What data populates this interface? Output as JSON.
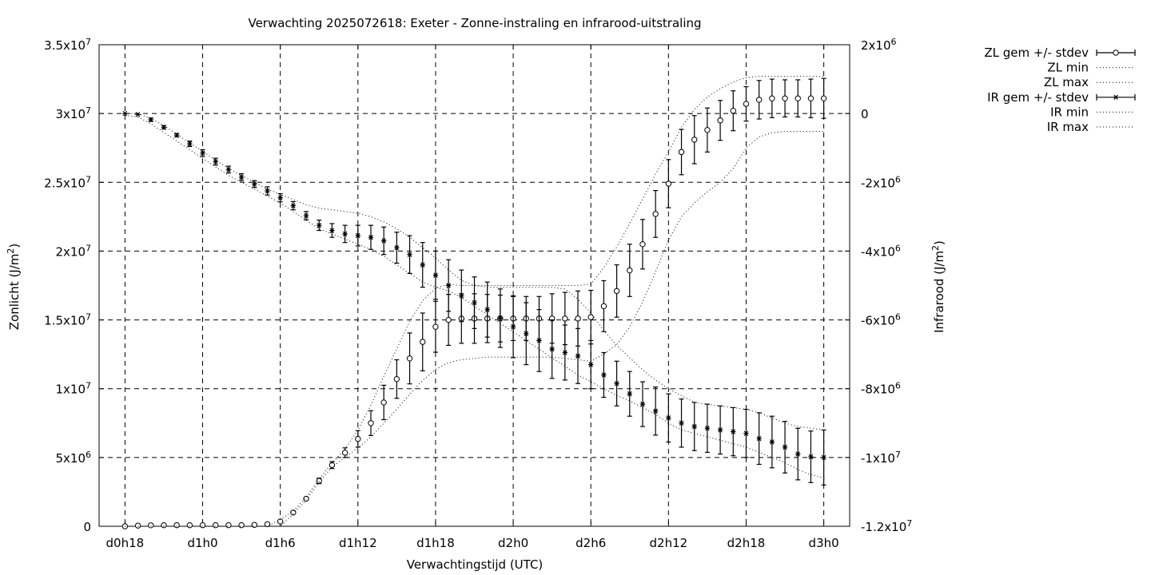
{
  "chart_data": {
    "type": "line",
    "title": "Verwachting 2025072618: Exeter - Zonne-instraling en infrarood-uitstraling",
    "xlabel": "Verwachtingstijd (UTC)",
    "ylabel": "Zonlicht (J/m²)",
    "y2label": "Infrarood (J/m²)",
    "x_ticks": [
      {
        "x": 18,
        "label": "d0h18"
      },
      {
        "x": 24,
        "label": "d1h0"
      },
      {
        "x": 30,
        "label": "d1h6"
      },
      {
        "x": 36,
        "label": "d1h12"
      },
      {
        "x": 42,
        "label": "d1h18"
      },
      {
        "x": 48,
        "label": "d2h0"
      },
      {
        "x": 54,
        "label": "d2h6"
      },
      {
        "x": 60,
        "label": "d2h12"
      },
      {
        "x": 66,
        "label": "d2h18"
      },
      {
        "x": 72,
        "label": "d3h0"
      }
    ],
    "xlim": [
      16,
      74
    ],
    "ylim": [
      0,
      35000000
    ],
    "y2lim": [
      -12000000,
      2000000
    ],
    "y_ticks": [
      {
        "v": 0,
        "m": "0",
        "e": ""
      },
      {
        "v": 5000000,
        "m": "5x10",
        "e": "6"
      },
      {
        "v": 10000000,
        "m": "1x10",
        "e": "7"
      },
      {
        "v": 15000000,
        "m": "1.5x10",
        "e": "7"
      },
      {
        "v": 20000000,
        "m": "2x10",
        "e": "7"
      },
      {
        "v": 25000000,
        "m": "2.5x10",
        "e": "7"
      },
      {
        "v": 30000000,
        "m": "3x10",
        "e": "7"
      },
      {
        "v": 35000000,
        "m": "3.5x10",
        "e": "7"
      }
    ],
    "y2_ticks": [
      {
        "v": -12000000,
        "m": "-1.2x10",
        "e": "7"
      },
      {
        "v": -10000000,
        "m": "-1x10",
        "e": "7"
      },
      {
        "v": -8000000,
        "m": "-8x10",
        "e": "6"
      },
      {
        "v": -6000000,
        "m": "-6x10",
        "e": "6"
      },
      {
        "v": -4000000,
        "m": "-4x10",
        "e": "6"
      },
      {
        "v": -2000000,
        "m": "-2x10",
        "e": "6"
      },
      {
        "v": 0,
        "m": "0",
        "e": ""
      },
      {
        "v": 2000000,
        "m": "2x10",
        "e": "6"
      }
    ],
    "grid": true,
    "legend_position": "top-right-outside",
    "legend": [
      "ZL gem +/- stdev",
      "ZL min",
      "ZL max",
      "IR gem +/- stdev",
      "IR min",
      "IR max"
    ],
    "x": [
      18,
      19,
      20,
      21,
      22,
      23,
      24,
      25,
      26,
      27,
      28,
      29,
      30,
      31,
      32,
      33,
      34,
      35,
      36,
      37,
      38,
      39,
      40,
      41,
      42,
      43,
      44,
      45,
      46,
      47,
      48,
      49,
      50,
      51,
      52,
      53,
      54,
      55,
      56,
      57,
      58,
      59,
      60,
      61,
      62,
      63,
      64,
      65,
      66,
      67,
      68,
      69,
      70,
      71,
      72
    ],
    "series": [
      {
        "name": "ZL gem +/- stdev",
        "axis": "y1",
        "marker": "circle",
        "values": [
          0,
          50000.0,
          70000.0,
          80000.0,
          80000.0,
          80000.0,
          80000.0,
          80000.0,
          80000.0,
          80000.0,
          100000.0,
          150000.0,
          350000.0,
          1000000.0,
          2000000.0,
          3300000.0,
          4450000.0,
          5350000.0,
          6350000.0,
          7500000.0,
          9000000.0,
          10700000.0,
          12200000.0,
          13400000.0,
          14500000.0,
          15000000.0,
          15100000.0,
          15100000.0,
          15100000.0,
          15100000.0,
          15100000.0,
          15100000.0,
          15100000.0,
          15100000.0,
          15100000.0,
          15100000.0,
          15200000.0,
          16000000.0,
          17100000.0,
          18600000.0,
          20500000.0,
          22700000.0,
          24900000.0,
          27200000.0,
          28100000.0,
          28800000.0,
          29500000.0,
          30200000.0,
          30700000.0,
          31000000.0,
          31100000.0,
          31100000.0,
          31100000.0,
          31100000.0,
          31100000.0
        ],
        "stdev": [
          0,
          0,
          0,
          0,
          0,
          0,
          0,
          0,
          0,
          0,
          0,
          50000.0,
          100000.0,
          100000.0,
          100000.0,
          200000.0,
          250000.0,
          350000.0,
          600000.0,
          900000.0,
          1250000.0,
          1400000.0,
          1850000.0,
          2100000.0,
          1850000.0,
          1850000.0,
          1800000.0,
          1800000.0,
          1750000.0,
          1700000.0,
          1600000.0,
          1600000.0,
          1600000.0,
          1800000.0,
          1900000.0,
          2000000.0,
          1950000.0,
          1850000.0,
          1900000.0,
          1900000.0,
          1800000.0,
          1700000.0,
          1750000.0,
          1650000.0,
          1750000.0,
          1600000.0,
          1450000.0,
          1450000.0,
          1250000.0,
          1400000.0,
          1400000.0,
          1350000.0,
          1350000.0,
          1400000.0,
          1450000.0
        ]
      },
      {
        "name": "ZL min",
        "axis": "y1",
        "style": "dotted",
        "values": [
          0,
          0,
          0,
          0,
          0,
          0,
          0,
          0,
          0,
          0,
          0,
          0,
          0,
          900000.0,
          1900000.0,
          3200000.0,
          4300000.0,
          5000000.0,
          5700000.0,
          6500000.0,
          7500000.0,
          8500000.0,
          9600000.0,
          10600000.0,
          11400000.0,
          11900000.0,
          12100000.0,
          12200000.0,
          12300000.0,
          12300000.0,
          12300000.0,
          12300000.0,
          12300000.0,
          12300000.0,
          12200000.0,
          12100000.0,
          12000000.0,
          12500000.0,
          13200000.0,
          14500000.0,
          16300000.0,
          18500000.0,
          20800000.0,
          22500000.0,
          23500000.0,
          24300000.0,
          25000000.0,
          26000000.0,
          27500000.0,
          28300000.0,
          28600000.0,
          28700000.0,
          28700000.0,
          28700000.0,
          28700000.0
        ]
      },
      {
        "name": "ZL max",
        "axis": "y1",
        "style": "dotted",
        "values": [
          0,
          0,
          0,
          0,
          0,
          0,
          0,
          0,
          0,
          0,
          0,
          0,
          500000.0,
          1100000.0,
          2100000.0,
          3400000.0,
          4600000.0,
          5600000.0,
          7000000.0,
          8800000.0,
          10900000.0,
          12900000.0,
          14900000.0,
          16400000.0,
          17300000.0,
          17600000.0,
          17500000.0,
          17500000.0,
          17500000.0,
          17500000.0,
          17500000.0,
          17500000.0,
          17500000.0,
          17500000.0,
          17500000.0,
          17500000.0,
          17600000.0,
          18800000.0,
          20300000.0,
          22000000.0,
          23800000.0,
          25600000.0,
          27200000.0,
          29000000.0,
          30300000.0,
          31200000.0,
          31800000.0,
          32300000.0,
          32600000.0,
          32700000.0,
          32700000.0,
          32700000.0,
          32700000.0,
          32700000.0,
          32700000.0
        ]
      },
      {
        "name": "IR gem +/- stdev",
        "axis": "y2",
        "marker": "star",
        "values": [
          0,
          -30000.0,
          -180000.0,
          -400000.0,
          -630000.0,
          -880000.0,
          -1150000.0,
          -1400000.0,
          -1630000.0,
          -1850000.0,
          -2050000.0,
          -2250000.0,
          -2450000.0,
          -2680000.0,
          -2970000.0,
          -3250000.0,
          -3400000.0,
          -3500000.0,
          -3550000.0,
          -3600000.0,
          -3700000.0,
          -3900000.0,
          -4100000.0,
          -4400000.0,
          -4700000.0,
          -5000000.0,
          -5300000.0,
          -5500000.0,
          -5700000.0,
          -5950000.0,
          -6200000.0,
          -6400000.0,
          -6600000.0,
          -6850000.0,
          -6950000.0,
          -7050000.0,
          -7300000.0,
          -7600000.0,
          -7850000.0,
          -8150000.0,
          -8450000.0,
          -8650000.0,
          -8850000.0,
          -9000000.0,
          -9100000.0,
          -9150000.0,
          -9200000.0,
          -9250000.0,
          -9300000.0,
          -9450000.0,
          -9550000.0,
          -9700000.0,
          -9900000.0,
          -9980000.0,
          -10000000.0
        ]
      },
      {
        "name": "IR min",
        "axis": "y2",
        "style": "dotted",
        "values": [
          -50000.0,
          -100000.0,
          -300000.0,
          -550000.0,
          -800000.0,
          -1050000.0,
          -1300000.0,
          -1550000.0,
          -1800000.0,
          -2000000.0,
          -2200000.0,
          -2400000.0,
          -2600000.0,
          -2850000.0,
          -3100000.0,
          -3350000.0,
          -3500000.0,
          -3650000.0,
          -3800000.0,
          -3950000.0,
          -4150000.0,
          -4400000.0,
          -4650000.0,
          -4900000.0,
          -5050000.0,
          -5150000.0,
          -5350000.0,
          -5600000.0,
          -5850000.0,
          -6100000.0,
          -6350000.0,
          -6600000.0,
          -6850000.0,
          -7100000.0,
          -7350000.0,
          -7600000.0,
          -7800000.0,
          -8000000.0,
          -8200000.0,
          -8350000.0,
          -8550000.0,
          -8750000.0,
          -9000000.0,
          -9200000.0,
          -9300000.0,
          -9400000.0,
          -9500000.0,
          -9600000.0,
          -9700000.0,
          -9850000.0,
          -10000000.0,
          -10150000.0,
          -10350000.0,
          -10500000.0,
          -10600000.0
        ]
      },
      {
        "name": "IR max",
        "axis": "y2",
        "style": "dotted",
        "values": [
          0,
          0,
          -150000.0,
          -350000.0,
          -600000.0,
          -850000.0,
          -1100000.0,
          -1350000.0,
          -1600000.0,
          -1800000.0,
          -2000000.0,
          -2200000.0,
          -2350000.0,
          -2500000.0,
          -2650000.0,
          -2750000.0,
          -2800000.0,
          -2850000.0,
          -2900000.0,
          -3000000.0,
          -3150000.0,
          -3350000.0,
          -3600000.0,
          -3900000.0,
          -4200000.0,
          -4550000.0,
          -4850000.0,
          -5000000.0,
          -5050000.0,
          -5050000.0,
          -5050000.0,
          -5050000.0,
          -5050000.0,
          -5050000.0,
          -5100000.0,
          -5400000.0,
          -5800000.0,
          -6300000.0,
          -6750000.0,
          -7100000.0,
          -7450000.0,
          -7750000.0,
          -8000000.0,
          -8200000.0,
          -8400000.0,
          -8450000.0,
          -8500000.0,
          -8550000.0,
          -8600000.0,
          -8700000.0,
          -8850000.0,
          -9000000.0,
          -9100000.0,
          -9150000.0,
          -9200000.0
        ]
      }
    ],
    "ir_stdev": [
      0,
      0,
      50000.0,
      50000.0,
      50000.0,
      80000.0,
      100000.0,
      100000.0,
      100000.0,
      100000.0,
      100000.0,
      120000.0,
      120000.0,
      120000.0,
      120000.0,
      150000.0,
      200000.0,
      250000.0,
      300000.0,
      350000.0,
      400000.0,
      450000.0,
      550000.0,
      650000.0,
      700000.0,
      750000.0,
      750000.0,
      750000.0,
      800000.0,
      850000.0,
      900000.0,
      900000.0,
      900000.0,
      850000.0,
      800000.0,
      800000.0,
      700000.0,
      650000.0,
      650000.0,
      650000.0,
      650000.0,
      700000.0,
      700000.0,
      700000.0,
      700000.0,
      700000.0,
      700000.0,
      700000.0,
      700000.0,
      750000.0,
      750000.0,
      750000.0,
      750000.0,
      750000.0,
      800000.0
    ]
  }
}
